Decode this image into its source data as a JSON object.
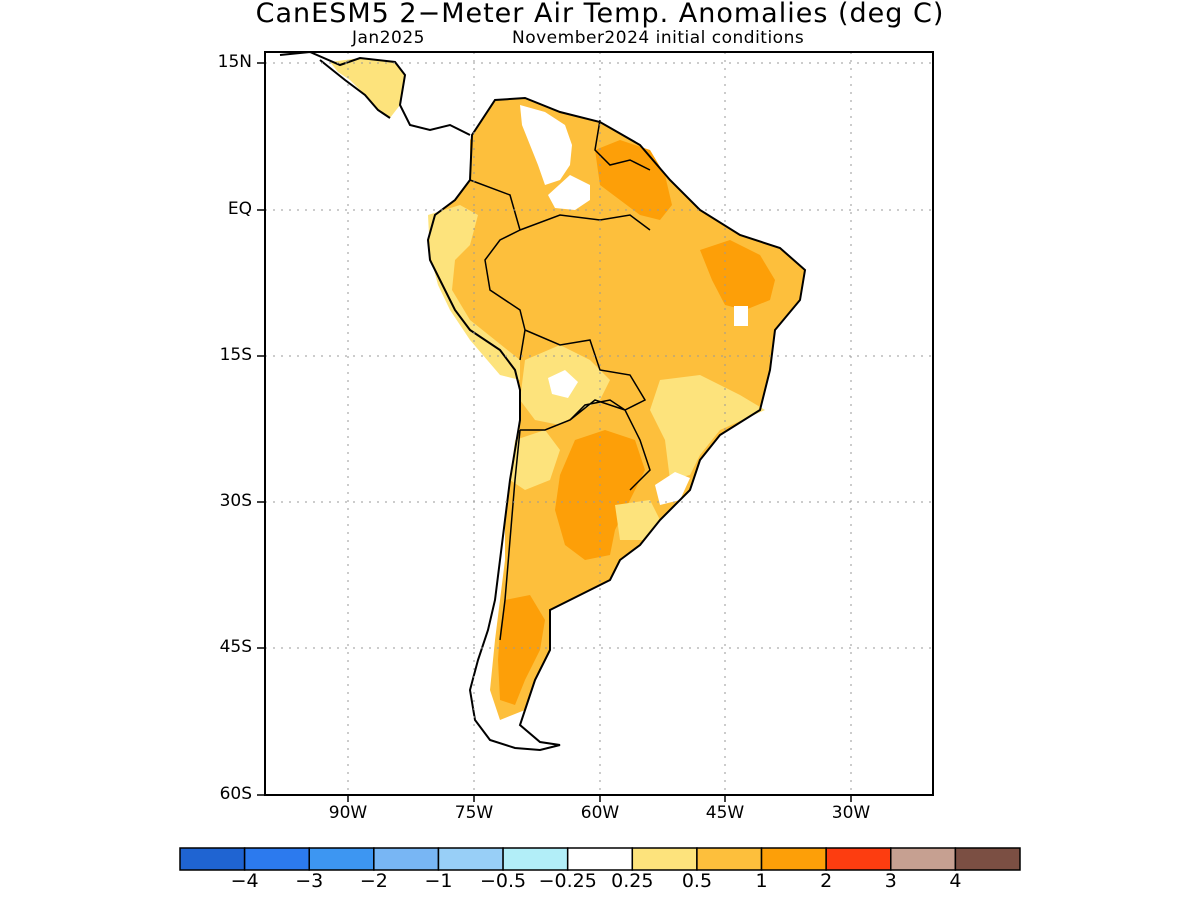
{
  "title": "CanESM5 2−Meter Air Temp. Anomalies (deg C)",
  "subtitle_left": "Jan2025",
  "subtitle_right": "November2024 initial conditions",
  "chart_data": {
    "type": "heatmap",
    "variable": "2-meter air temperature anomaly",
    "units": "deg C",
    "lon_range": [
      -97,
      -24
    ],
    "lat_range": [
      -60,
      15
    ],
    "y_ticks": [
      "15N",
      "EQ",
      "15S",
      "30S",
      "45S",
      "60S"
    ],
    "x_ticks": [
      "90W",
      "75W",
      "60W",
      "45W",
      "30W"
    ],
    "grid": true,
    "colorbar": {
      "labels": [
        "−4",
        "−3",
        "−2",
        "−1",
        "−0.5",
        "−0.25",
        "0.25",
        "0.5",
        "1",
        "2",
        "3",
        "4"
      ],
      "colors": [
        "#1f64d2",
        "#2c7aee",
        "#3d96f2",
        "#78b6f4",
        "#98cff7",
        "#b2eef8",
        "#ffffff",
        "#fde37c",
        "#fdbf3c",
        "#fd9f08",
        "#fd3d10",
        "#c6a091",
        "#7b4f43"
      ]
    },
    "regions": [
      {
        "name": "South America land",
        "anomaly_class": "0.5 to 1"
      },
      {
        "name": "Patagonia and northern Argentina",
        "anomaly_class": "1 to 2"
      },
      {
        "name": "Northern Brazil / Guianas",
        "anomaly_class": "1 to 2"
      },
      {
        "name": "Western Colombia / Venezuela Andes",
        "anomaly_class": "-0.25 to 0.25"
      }
    ]
  }
}
